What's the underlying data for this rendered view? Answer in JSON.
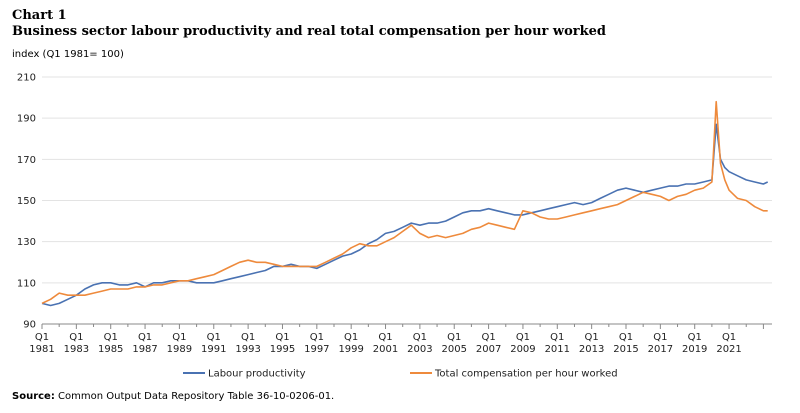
{
  "header": {
    "chart_label": "Chart 1",
    "title": "Business sector labour productivity and real total compensation per hour worked",
    "y_unit": "index (Q1 1981= 100)"
  },
  "source": {
    "label": "Source:",
    "text": "Common Output Data Repository Table 36-10-0206-01."
  },
  "colors": {
    "labour_productivity": "#4a72b2",
    "total_compensation": "#ee8a3c",
    "grid": "#e3e3e3",
    "axis": "#888888"
  },
  "chart_data": {
    "type": "line",
    "title": "Business sector labour productivity and real total compensation per hour worked",
    "ylabel": "index (Q1 1981= 100)",
    "xlabel": "",
    "ylim": [
      90,
      210
    ],
    "yticks": [
      90,
      110,
      130,
      150,
      170,
      190,
      210
    ],
    "xlim": [
      1981.0,
      2023.5
    ],
    "x_tick_years": [
      1981,
      1983,
      1985,
      1987,
      1989,
      1991,
      1993,
      1995,
      1997,
      1999,
      2001,
      2003,
      2005,
      2007,
      2009,
      2011,
      2013,
      2015,
      2017,
      2019,
      2021
    ],
    "x_tick_prefix": "Q1",
    "grid": "horizontal",
    "legend_position": "bottom",
    "series": [
      {
        "name": "Labour productivity",
        "color": "#4a72b2",
        "x": [
          1981.0,
          1981.5,
          1982.0,
          1982.5,
          1983.0,
          1983.5,
          1984.0,
          1984.5,
          1985.0,
          1985.5,
          1986.0,
          1986.5,
          1987.0,
          1987.5,
          1988.0,
          1988.5,
          1989.0,
          1989.5,
          1990.0,
          1990.5,
          1991.0,
          1991.5,
          1992.0,
          1992.5,
          1993.0,
          1993.5,
          1994.0,
          1994.5,
          1995.0,
          1995.5,
          1996.0,
          1996.5,
          1997.0,
          1997.5,
          1998.0,
          1998.5,
          1999.0,
          1999.5,
          2000.0,
          2000.5,
          2001.0,
          2001.5,
          2002.0,
          2002.5,
          2003.0,
          2003.5,
          2004.0,
          2004.5,
          2005.0,
          2005.5,
          2006.0,
          2006.5,
          2007.0,
          2007.5,
          2008.0,
          2008.5,
          2009.0,
          2009.5,
          2010.0,
          2010.5,
          2011.0,
          2011.5,
          2012.0,
          2012.5,
          2013.0,
          2013.5,
          2014.0,
          2014.5,
          2015.0,
          2015.5,
          2016.0,
          2016.5,
          2017.0,
          2017.5,
          2018.0,
          2018.5,
          2019.0,
          2019.5,
          2020.0,
          2020.25,
          2020.5,
          2020.75,
          2021.0,
          2021.5,
          2022.0,
          2022.5,
          2023.0,
          2023.25
        ],
        "values": [
          100,
          99,
          100,
          102,
          104,
          107,
          109,
          110,
          110,
          109,
          109,
          110,
          108,
          110,
          110,
          111,
          111,
          111,
          110,
          110,
          110,
          111,
          112,
          113,
          114,
          115,
          116,
          118,
          118,
          119,
          118,
          118,
          117,
          119,
          121,
          123,
          124,
          126,
          129,
          131,
          134,
          135,
          137,
          139,
          138,
          139,
          139,
          140,
          142,
          144,
          145,
          145,
          146,
          145,
          144,
          143,
          143,
          144,
          145,
          146,
          147,
          148,
          149,
          148,
          149,
          151,
          153,
          155,
          156,
          155,
          154,
          155,
          156,
          157,
          157,
          158,
          158,
          159,
          160,
          187,
          170,
          166,
          164,
          162,
          160,
          159,
          158,
          159
        ]
      },
      {
        "name": "Total compensation per hour worked",
        "color": "#ee8a3c",
        "x": [
          1981.0,
          1981.5,
          1982.0,
          1982.5,
          1983.0,
          1983.5,
          1984.0,
          1984.5,
          1985.0,
          1985.5,
          1986.0,
          1986.5,
          1987.0,
          1987.5,
          1988.0,
          1988.5,
          1989.0,
          1989.5,
          1990.0,
          1990.5,
          1991.0,
          1991.5,
          1992.0,
          1992.5,
          1993.0,
          1993.5,
          1994.0,
          1994.5,
          1995.0,
          1995.5,
          1996.0,
          1996.5,
          1997.0,
          1997.5,
          1998.0,
          1998.5,
          1999.0,
          1999.5,
          2000.0,
          2000.5,
          2001.0,
          2001.5,
          2002.0,
          2002.5,
          2003.0,
          2003.5,
          2004.0,
          2004.5,
          2005.0,
          2005.5,
          2006.0,
          2006.5,
          2007.0,
          2007.5,
          2008.0,
          2008.5,
          2009.0,
          2009.5,
          2010.0,
          2010.5,
          2011.0,
          2011.5,
          2012.0,
          2012.5,
          2013.0,
          2013.5,
          2014.0,
          2014.5,
          2015.0,
          2015.5,
          2016.0,
          2016.5,
          2017.0,
          2017.5,
          2018.0,
          2018.5,
          2019.0,
          2019.5,
          2020.0,
          2020.25,
          2020.5,
          2020.75,
          2021.0,
          2021.5,
          2022.0,
          2022.5,
          2023.0,
          2023.25
        ],
        "values": [
          100,
          102,
          105,
          104,
          104,
          104,
          105,
          106,
          107,
          107,
          107,
          108,
          108,
          109,
          109,
          110,
          111,
          111,
          112,
          113,
          114,
          116,
          118,
          120,
          121,
          120,
          120,
          119,
          118,
          118,
          118,
          118,
          118,
          120,
          122,
          124,
          127,
          129,
          128,
          128,
          130,
          132,
          135,
          138,
          134,
          132,
          133,
          132,
          133,
          134,
          136,
          137,
          139,
          138,
          137,
          136,
          145,
          144,
          142,
          141,
          141,
          142,
          143,
          144,
          145,
          146,
          147,
          148,
          150,
          152,
          154,
          153,
          152,
          150,
          152,
          153,
          155,
          156,
          159,
          198,
          168,
          160,
          155,
          151,
          150,
          147,
          145,
          145
        ]
      }
    ]
  }
}
